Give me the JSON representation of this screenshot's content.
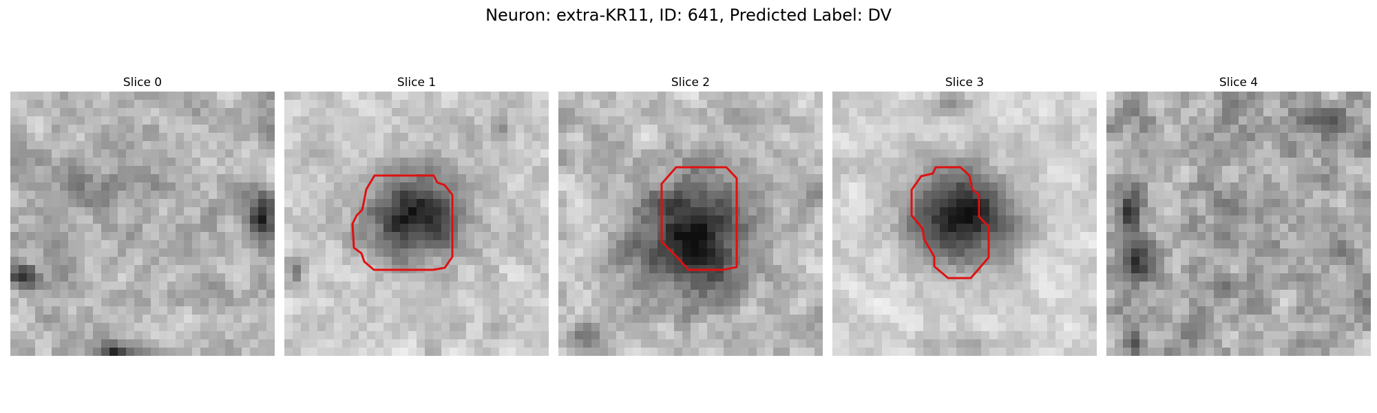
{
  "figure": {
    "title": "Neuron: extra-KR11, ID: 641, Predicted Label: DV"
  },
  "colors": {
    "background": "#ffffff",
    "contour": "#e01010"
  },
  "panels": [
    {
      "title": "Slice 0",
      "has_contour": false
    },
    {
      "title": "Slice 1",
      "has_contour": true
    },
    {
      "title": "Slice 2",
      "has_contour": true
    },
    {
      "title": "Slice 3",
      "has_contour": true
    },
    {
      "title": "Slice 4",
      "has_contour": false
    }
  ]
}
